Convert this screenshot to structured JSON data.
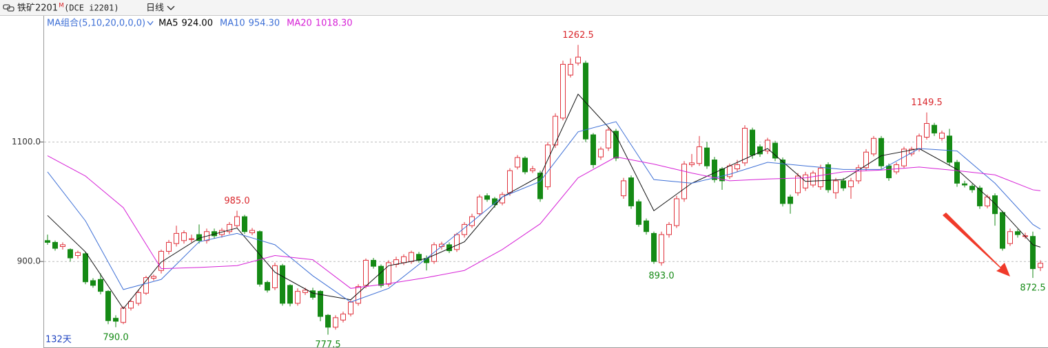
{
  "header": {
    "symbol": "铁矿2201",
    "marker": "M",
    "exchange": "(DCE i2201)",
    "period": "日线"
  },
  "chart_data": {
    "type": "candlestick",
    "days_label": "132天",
    "indicator": "MA组合(5,10,20,0,0,0)",
    "ylim": [
      757.5,
      1310
    ],
    "yticks": [
      {
        "value": 900,
        "label": "900.0"
      },
      {
        "value": 1100,
        "label": "1100.0"
      }
    ],
    "grid": true,
    "up_color": "#e0303a",
    "down_color": "#158a15",
    "open": [
      935,
      932,
      925,
      920,
      910,
      913,
      868,
      870,
      850,
      805,
      798,
      822,
      830,
      847,
      872,
      885,
      917,
      930,
      935,
      937,
      945,
      935,
      950,
      945,
      950,
      960,
      975,
      948,
      950,
      865,
      856,
      893,
      860,
      830,
      848,
      851,
      850,
      810,
      790,
      802,
      812,
      830,
      860,
      902,
      892,
      862,
      895,
      898,
      900,
      912,
      905,
      900,
      925,
      928,
      920,
      945,
      960,
      980,
      1010,
      1005,
      998,
      1015,
      1058,
      1073,
      1052,
      1048,
      1025,
      1095,
      1140,
      1212,
      1232,
      1232,
      1112,
      1075,
      1090,
      1118,
      1010,
      1040,
      1000,
      968,
      947,
      898,
      945,
      960,
      1005,
      1062,
      1064,
      1090,
      1070,
      1055,
      1042,
      1055,
      1065,
      1120,
      1092,
      1085,
      1098,
      1070,
      1008,
      1015,
      1023,
      1028,
      1025,
      1062,
      1015,
      1035,
      1025,
      1035,
      1057,
      1080,
      1106,
      1060,
      1050,
      1060,
      1080,
      1088,
      1108,
      1128,
      1106,
      1110,
      1066,
      1030,
      1026,
      1023,
      993,
      1010,
      982,
      930,
      950,
      943,
      942,
      890
    ],
    "high": [
      945,
      935,
      932,
      922,
      918,
      916,
      872,
      880,
      852,
      810,
      825,
      838,
      852,
      876,
      878,
      920,
      936,
      960,
      952,
      945,
      962,
      955,
      955,
      956,
      966,
      985,
      978,
      956,
      952,
      868,
      898,
      896,
      862,
      855,
      856,
      856,
      852,
      812,
      810,
      816,
      836,
      862,
      905,
      906,
      895,
      902,
      908,
      912,
      918,
      916,
      910,
      932,
      933,
      932,
      948,
      966,
      980,
      1012,
      1014,
      1008,
      1016,
      1056,
      1078,
      1076,
      1060,
      1052,
      1100,
      1148,
      1236,
      1240,
      1262.5,
      1236,
      1115,
      1092,
      1124,
      1122,
      1040,
      1044,
      1004,
      972,
      950,
      950,
      966,
      1010,
      1068,
      1080,
      1110,
      1100,
      1075,
      1058,
      1064,
      1070,
      1128,
      1124,
      1096,
      1107,
      1102,
      1074,
      1012,
      1048,
      1050,
      1052,
      1062,
      1066,
      1040,
      1040,
      1040,
      1062,
      1088,
      1110,
      1110,
      1064,
      1066,
      1092,
      1092,
      1114,
      1149.5,
      1132,
      1119,
      1122,
      1070,
      1035,
      1030,
      1027,
      1012,
      1014,
      985,
      955,
      954,
      948,
      950,
      902
    ],
    "low": [
      928,
      918,
      920,
      900,
      905,
      862,
      856,
      845,
      795,
      790,
      795,
      818,
      826,
      844,
      868,
      880,
      912,
      925,
      930,
      932,
      930,
      930,
      938,
      940,
      946,
      956,
      946,
      944,
      858,
      848,
      852,
      826,
      825,
      826,
      844,
      836,
      800,
      777.5,
      786,
      798,
      808,
      826,
      855,
      888,
      856,
      858,
      890,
      894,
      896,
      898,
      885,
      896,
      920,
      914,
      916,
      940,
      956,
      976,
      1000,
      990,
      994,
      1010,
      1054,
      1046,
      1048,
      1000,
      1020,
      1090,
      1136,
      1208,
      1228,
      1100,
      1056,
      1070,
      1085,
      1068,
      1005,
      988,
      958,
      945,
      896,
      893,
      940,
      956,
      1000,
      1058,
      1060,
      1055,
      1032,
      1020,
      1038,
      1050,
      1060,
      1072,
      1075,
      1080,
      1068,
      992,
      980,
      1010,
      1018,
      1024,
      1020,
      1015,
      1005,
      1018,
      1005,
      1030,
      1052,
      1076,
      1055,
      1035,
      1046,
      1056,
      1076,
      1084,
      1104,
      1110,
      1102,
      1060,
      1025,
      1024,
      1015,
      988,
      989,
      960,
      918,
      926,
      940,
      938,
      872.5,
      884
    ],
    "close": [
      932,
      922,
      928,
      906,
      915,
      866,
      860,
      850,
      801,
      800,
      822,
      833,
      848,
      873,
      875,
      917,
      932,
      947,
      948,
      938,
      935,
      950,
      943,
      952,
      962,
      975,
      950,
      952,
      862,
      852,
      893,
      830,
      830,
      850,
      852,
      840,
      808,
      790,
      806,
      812,
      832,
      858,
      902,
      892,
      860,
      898,
      903,
      908,
      915,
      902,
      898,
      928,
      929,
      918,
      945,
      962,
      975,
      1008,
      1004,
      995,
      1012,
      1052,
      1074,
      1050,
      1055,
      1005,
      1095,
      1143,
      1230,
      1230,
      1242,
      1105,
      1062,
      1088,
      1120,
      1073,
      1035,
      993,
      962,
      950,
      900,
      945,
      962,
      1005,
      1063,
      1065,
      1092,
      1060,
      1037,
      1035,
      1060,
      1062,
      1123,
      1078,
      1080,
      1103,
      1073,
      997,
      997,
      1043,
      1045,
      1048,
      1056,
      1020,
      1035,
      1023,
      1035,
      1057,
      1083,
      1106,
      1060,
      1040,
      1062,
      1088,
      1088,
      1110,
      1131,
      1115,
      1115,
      1066,
      1031,
      1028,
      1020,
      993,
      1008,
      980,
      922,
      950,
      945,
      943,
      888,
      897
    ],
    "annotations": [
      {
        "x": 70,
        "value": 1262.5,
        "color": "#d9262b"
      },
      {
        "x": 25,
        "value": 985,
        "label": "985.0",
        "color": "#d9262b"
      },
      {
        "x": 116,
        "value": 1149.5,
        "color": "#d9262b"
      },
      {
        "x": 9,
        "value": 790,
        "label": "790.0",
        "color": "#158a15"
      },
      {
        "x": 37,
        "value": 777.5,
        "color": "#158a15"
      },
      {
        "x": 81,
        "value": 893,
        "label": "893.0",
        "color": "#158a15"
      },
      {
        "x": 130,
        "value": 872.5,
        "color": "#158a15"
      }
    ],
    "ma_x": [
      0,
      5,
      10,
      15,
      20,
      25,
      30,
      35,
      40,
      45,
      50,
      55,
      60,
      65,
      70,
      75,
      80,
      85,
      90,
      95,
      100,
      105,
      110,
      115,
      120,
      125,
      130,
      131
    ],
    "series": [
      {
        "name": "MA5",
        "value_label": "924.00",
        "color": "#111111",
        "values": [
          977,
          916,
          821,
          899,
          939,
          956,
          882,
          847,
          836,
          893,
          905,
          933,
          1008,
          1043,
          1180,
          1111,
          985,
          1031,
          1060,
          1089,
          1034,
          1037,
          1077,
          1089,
          1054,
          997,
          928,
          924
        ]
      },
      {
        "name": "MA10",
        "value_label": "954.30",
        "color": "#3d6fd6",
        "values": [
          1050,
          968,
          853,
          870,
          933,
          947,
          928,
          876,
          832,
          855,
          905,
          956,
          1008,
          1034,
          1117,
          1134,
          1037,
          1031,
          1046,
          1066,
          1060,
          1054,
          1054,
          1089,
          1085,
          1031,
          962,
          954.3
        ]
      },
      {
        "name": "MA20",
        "value_label": "1018.30",
        "color": "#d61fd6",
        "values": [
          1077,
          1043,
          990,
          888,
          890,
          893,
          910,
          903,
          855,
          863,
          873,
          885,
          920,
          963,
          1040,
          1075,
          1063,
          1048,
          1035,
          1038,
          1040,
          1050,
          1053,
          1058,
          1052,
          1045,
          1020,
          1018.3
        ]
      }
    ]
  }
}
